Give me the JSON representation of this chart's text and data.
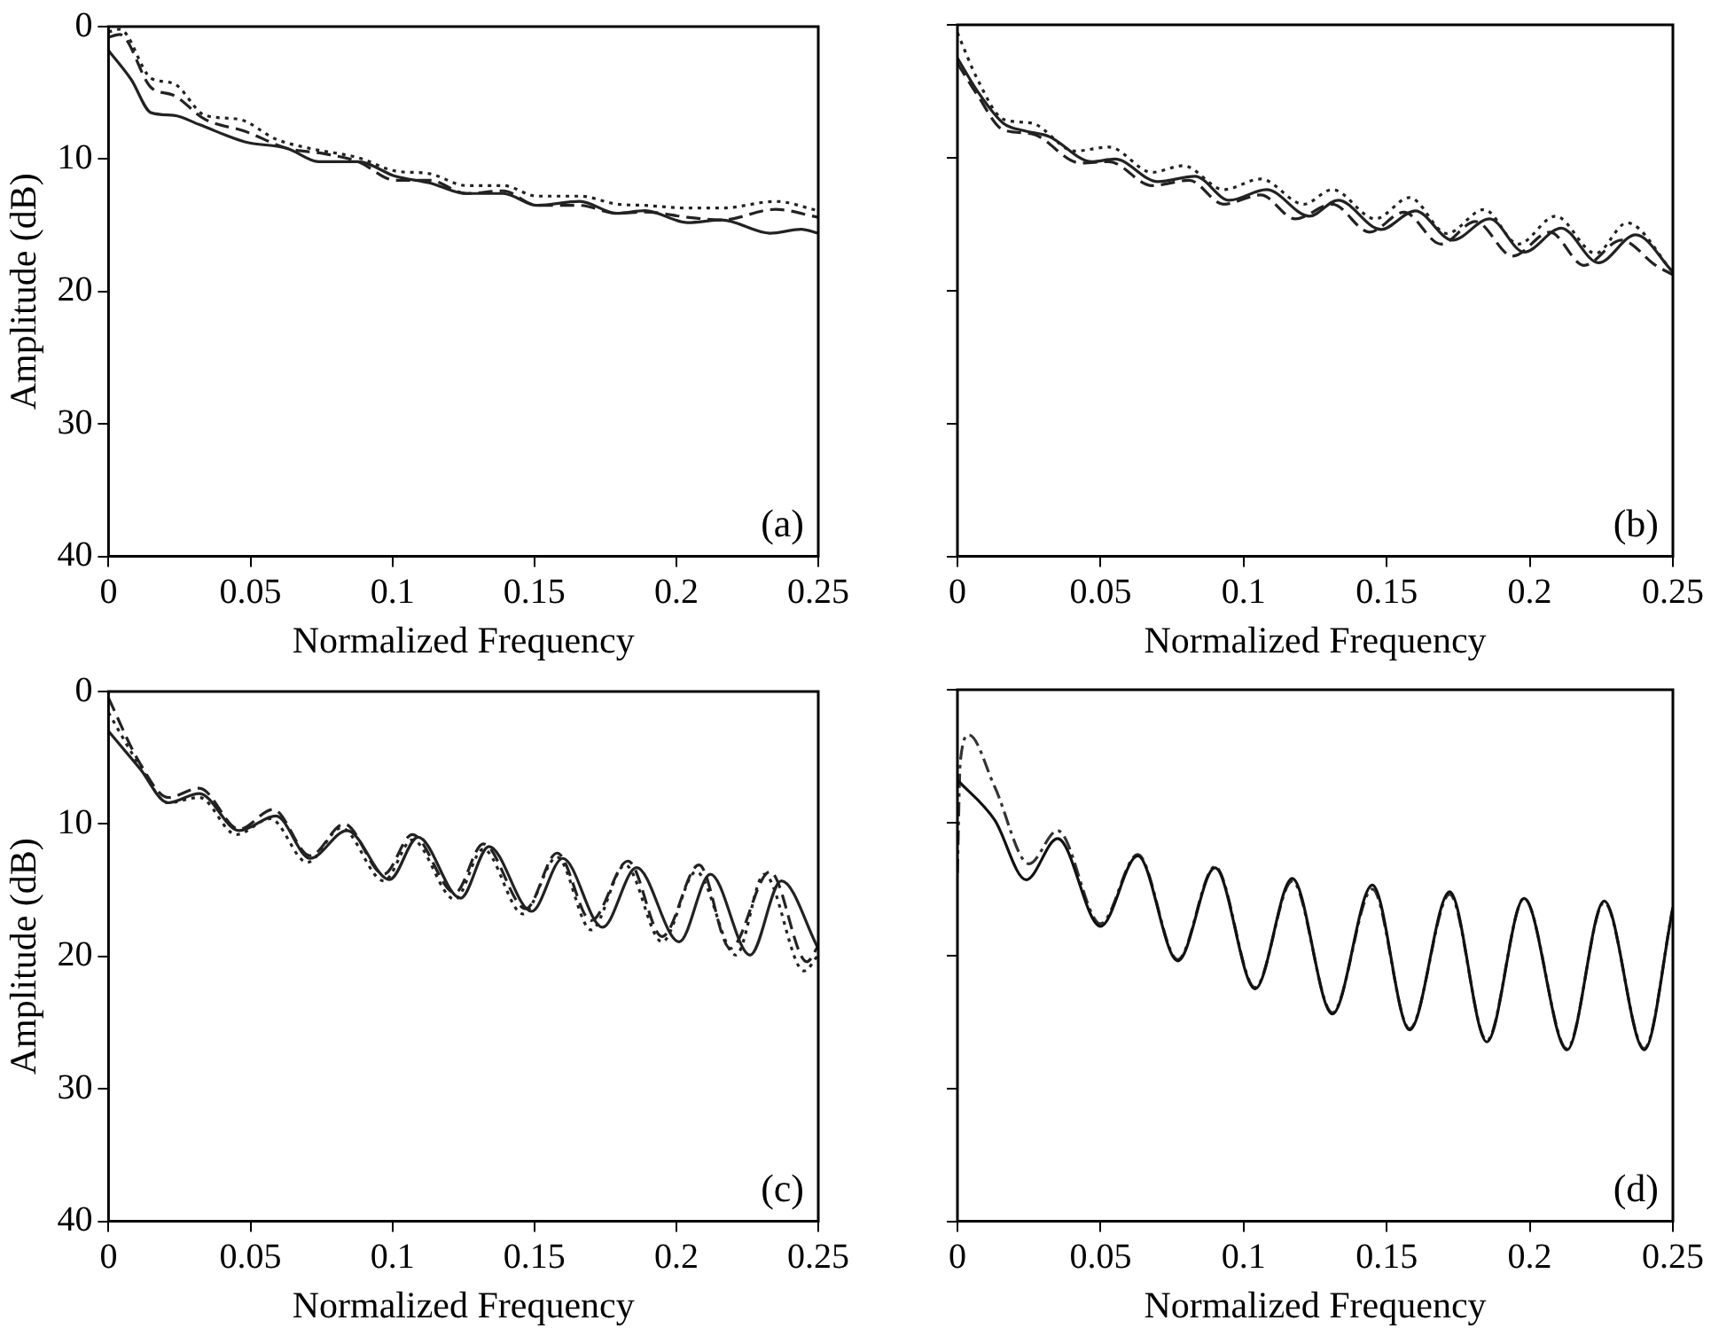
{
  "chart_data": [
    {
      "type": "line",
      "xlabel": "Normalized Frequency",
      "ylabel": "Amplitude (dB)",
      "annotations": [
        "(a)"
      ],
      "xlim": [
        0,
        0.25
      ],
      "xticks": [
        0,
        0.05,
        0.1,
        0.15,
        0.2,
        0.25
      ],
      "ylim": [
        40,
        0
      ],
      "yticks": [
        0,
        10,
        20,
        30,
        40
      ],
      "series": [
        {
          "color": "#222222",
          "line_style": "solid",
          "x": [
            0,
            0.008,
            0.015,
            0.023,
            0.032,
            0.048,
            0.063,
            0.074,
            0.088,
            0.101,
            0.113,
            0.126,
            0.139,
            0.151,
            0.166,
            0.179,
            0.189,
            0.204,
            0.216,
            0.233,
            0.244,
            0.25
          ],
          "values": [
            1.8,
            4,
            6.5,
            6.7,
            7.4,
            8.7,
            9.2,
            10.2,
            10.2,
            11.3,
            11.8,
            12.6,
            12.6,
            13.5,
            13.2,
            14.1,
            13.9,
            14.8,
            14.6,
            15.6,
            15.3,
            15.6
          ]
        },
        {
          "color": "#222222",
          "line_style": "dashed",
          "x": [
            0,
            0.004,
            0.015,
            0.023,
            0.034,
            0.048,
            0.063,
            0.076,
            0.088,
            0.101,
            0.113,
            0.126,
            0.139,
            0.151,
            0.166,
            0.179,
            0.189,
            0.204,
            0.216,
            0.235,
            0.25
          ],
          "values": [
            0.8,
            0.6,
            4.6,
            5.2,
            7,
            7.9,
            9.2,
            9.6,
            10.2,
            11.6,
            11.6,
            12.6,
            12.4,
            13.5,
            13.5,
            14.1,
            14,
            14.4,
            14.6,
            13.8,
            14.4
          ]
        },
        {
          "color": "#222222",
          "line_style": "dotted",
          "x": [
            0,
            0.004,
            0.015,
            0.023,
            0.034,
            0.046,
            0.059,
            0.071,
            0.088,
            0.101,
            0.113,
            0.126,
            0.139,
            0.151,
            0.166,
            0.179,
            0.189,
            0.204,
            0.216,
            0.235,
            0.25
          ],
          "values": [
            0.4,
            0.2,
            3.9,
            4.3,
            6.7,
            7,
            8.5,
            9.2,
            9.9,
            10.9,
            11.1,
            12,
            12,
            12.8,
            12.8,
            13.4,
            13.5,
            13.7,
            13.7,
            13.2,
            13.9
          ]
        }
      ]
    },
    {
      "type": "line",
      "xlabel": "Normalized Frequency",
      "annotations": [
        "(b)"
      ],
      "tick_labels": "x",
      "xlim": [
        0,
        0.25
      ],
      "xticks": [
        0,
        0.05,
        0.1,
        0.15,
        0.2,
        0.25
      ],
      "ylim": [
        40,
        0
      ],
      "yticks": [
        0,
        10,
        20,
        30,
        40
      ],
      "series": [
        {
          "color": "#222222",
          "line_style": "solid",
          "x": [
            0,
            0.007,
            0.016,
            0.024,
            0.032,
            0.047,
            0.055,
            0.07,
            0.083,
            0.095,
            0.108,
            0.123,
            0.133,
            0.148,
            0.16,
            0.173,
            0.186,
            0.198,
            0.211,
            0.224,
            0.237,
            0.25
          ],
          "values": [
            2.5,
            5,
            7.4,
            8,
            8.4,
            10.3,
            10.1,
            11.8,
            11.4,
            13.2,
            12.4,
            14.4,
            13.2,
            15.4,
            14,
            16.2,
            14.6,
            17.1,
            15.3,
            17.9,
            15.8,
            18.6
          ]
        },
        {
          "color": "#222222",
          "line_style": "dashed",
          "x": [
            0,
            0.007,
            0.016,
            0.026,
            0.043,
            0.053,
            0.068,
            0.081,
            0.093,
            0.106,
            0.118,
            0.131,
            0.144,
            0.156,
            0.169,
            0.181,
            0.194,
            0.207,
            0.219,
            0.232,
            0.244,
            0.25
          ],
          "values": [
            2.9,
            5.3,
            7.9,
            8.2,
            10.4,
            10.3,
            12.1,
            11.7,
            13.5,
            12.8,
            14.6,
            13.5,
            15.6,
            14.1,
            16.5,
            14.8,
            17.4,
            15.6,
            18.1,
            16.2,
            18.1,
            18.8
          ]
        },
        {
          "color": "#222222",
          "line_style": "dotted",
          "x": [
            0,
            0.007,
            0.016,
            0.026,
            0.041,
            0.053,
            0.068,
            0.079,
            0.093,
            0.106,
            0.121,
            0.131,
            0.146,
            0.158,
            0.171,
            0.184,
            0.196,
            0.209,
            0.223,
            0.234,
            0.25
          ],
          "values": [
            0.6,
            4.1,
            7.1,
            7.4,
            9.5,
            9.2,
            11.1,
            10.6,
            12.4,
            11.6,
            13.5,
            12.4,
            14.6,
            13,
            15.7,
            13.9,
            16.5,
            14.4,
            17.2,
            14.9,
            18.6
          ]
        }
      ]
    },
    {
      "type": "line",
      "xlabel": "Normalized Frequency",
      "ylabel": "Amplitude (dB)",
      "annotations": [
        "(c)"
      ],
      "xlim": [
        0,
        0.25
      ],
      "xticks": [
        0,
        0.05,
        0.1,
        0.15,
        0.2,
        0.25
      ],
      "ylim": [
        40,
        0
      ],
      "yticks": [
        0,
        10,
        20,
        30,
        40
      ],
      "series": [
        {
          "color": "#222222",
          "line_style": "solid",
          "x": [
            0,
            0.011,
            0.021,
            0.032,
            0.046,
            0.059,
            0.071,
            0.084,
            0.099,
            0.109,
            0.124,
            0.134,
            0.149,
            0.16,
            0.174,
            0.186,
            0.201,
            0.212,
            0.226,
            0.237,
            0.25
          ],
          "values": [
            3,
            5.8,
            8.4,
            7.7,
            10.5,
            9.4,
            12.6,
            10.5,
            14.2,
            11,
            15.6,
            11.7,
            16.6,
            12.6,
            17.8,
            13.3,
            18.9,
            13.8,
            19.9,
            14.3,
            19.4
          ]
        },
        {
          "color": "#222222",
          "line_style": "dashed",
          "x": [
            0,
            0.011,
            0.021,
            0.032,
            0.046,
            0.058,
            0.071,
            0.083,
            0.097,
            0.107,
            0.122,
            0.132,
            0.147,
            0.158,
            0.17,
            0.183,
            0.195,
            0.208,
            0.219,
            0.233,
            0.246,
            0.25
          ],
          "values": [
            0.5,
            5.4,
            8,
            7.3,
            10.4,
            8.9,
            12.4,
            10,
            13.8,
            10.8,
            15.2,
            11.5,
            16.4,
            12.2,
            17.3,
            12.8,
            18.5,
            13.1,
            19.4,
            13.6,
            20.4,
            19.2
          ]
        },
        {
          "color": "#222222",
          "line_style": "dotted",
          "x": [
            0,
            0.011,
            0.021,
            0.032,
            0.045,
            0.057,
            0.07,
            0.082,
            0.097,
            0.107,
            0.122,
            0.132,
            0.146,
            0.158,
            0.17,
            0.182,
            0.195,
            0.207,
            0.221,
            0.231,
            0.245,
            0.25
          ],
          "values": [
            1.6,
            5.6,
            8.4,
            8,
            10.8,
            9.6,
            12.9,
            10.3,
            14.3,
            11.2,
            15.7,
            11.9,
            16.8,
            12.5,
            18,
            13.1,
            18.9,
            13.6,
            19.9,
            13.8,
            21.1,
            19.9
          ]
        }
      ]
    },
    {
      "type": "line",
      "xlabel": "Normalized Frequency",
      "annotations": [
        "(d)"
      ],
      "tick_labels": "x",
      "xlim": [
        0,
        0.25
      ],
      "xticks": [
        0,
        0.05,
        0.1,
        0.15,
        0.2,
        0.25
      ],
      "ylim": [
        40,
        0
      ],
      "yticks": [
        0,
        10,
        20,
        30,
        40
      ],
      "series": [
        {
          "color": "#111111",
          "line_style": "solid",
          "x": [
            0,
            0.013,
            0.024,
            0.035,
            0.05,
            0.063,
            0.077,
            0.09,
            0.104,
            0.117,
            0.131,
            0.145,
            0.158,
            0.172,
            0.185,
            0.198,
            0.213,
            0.226,
            0.24,
            0.25
          ],
          "values": [
            6.8,
            9.8,
            14.3,
            11.2,
            17.8,
            12.5,
            20.4,
            13.4,
            22.5,
            14.2,
            24.4,
            14.7,
            25.6,
            15.2,
            26.5,
            15.7,
            27.1,
            15.9,
            27.1,
            16.4
          ]
        },
        {
          "color": "#333333",
          "line_style": "dashdot",
          "x": [
            0,
            0.001,
            0.004,
            0.013,
            0.025,
            0.035,
            0.05,
            0.063,
            0.077,
            0.09,
            0.104,
            0.117,
            0.131,
            0.145,
            0.158,
            0.172,
            0.185,
            0.198,
            0.213,
            0.226,
            0.24,
            0.25
          ],
          "values": [
            13.8,
            5.4,
            3.4,
            7.3,
            13.1,
            10.6,
            17.6,
            12.4,
            20.3,
            13.3,
            22.4,
            14.4,
            24.3,
            15,
            25.5,
            15.4,
            26.4,
            15.7,
            27,
            16,
            27,
            16.4
          ]
        }
      ]
    }
  ]
}
